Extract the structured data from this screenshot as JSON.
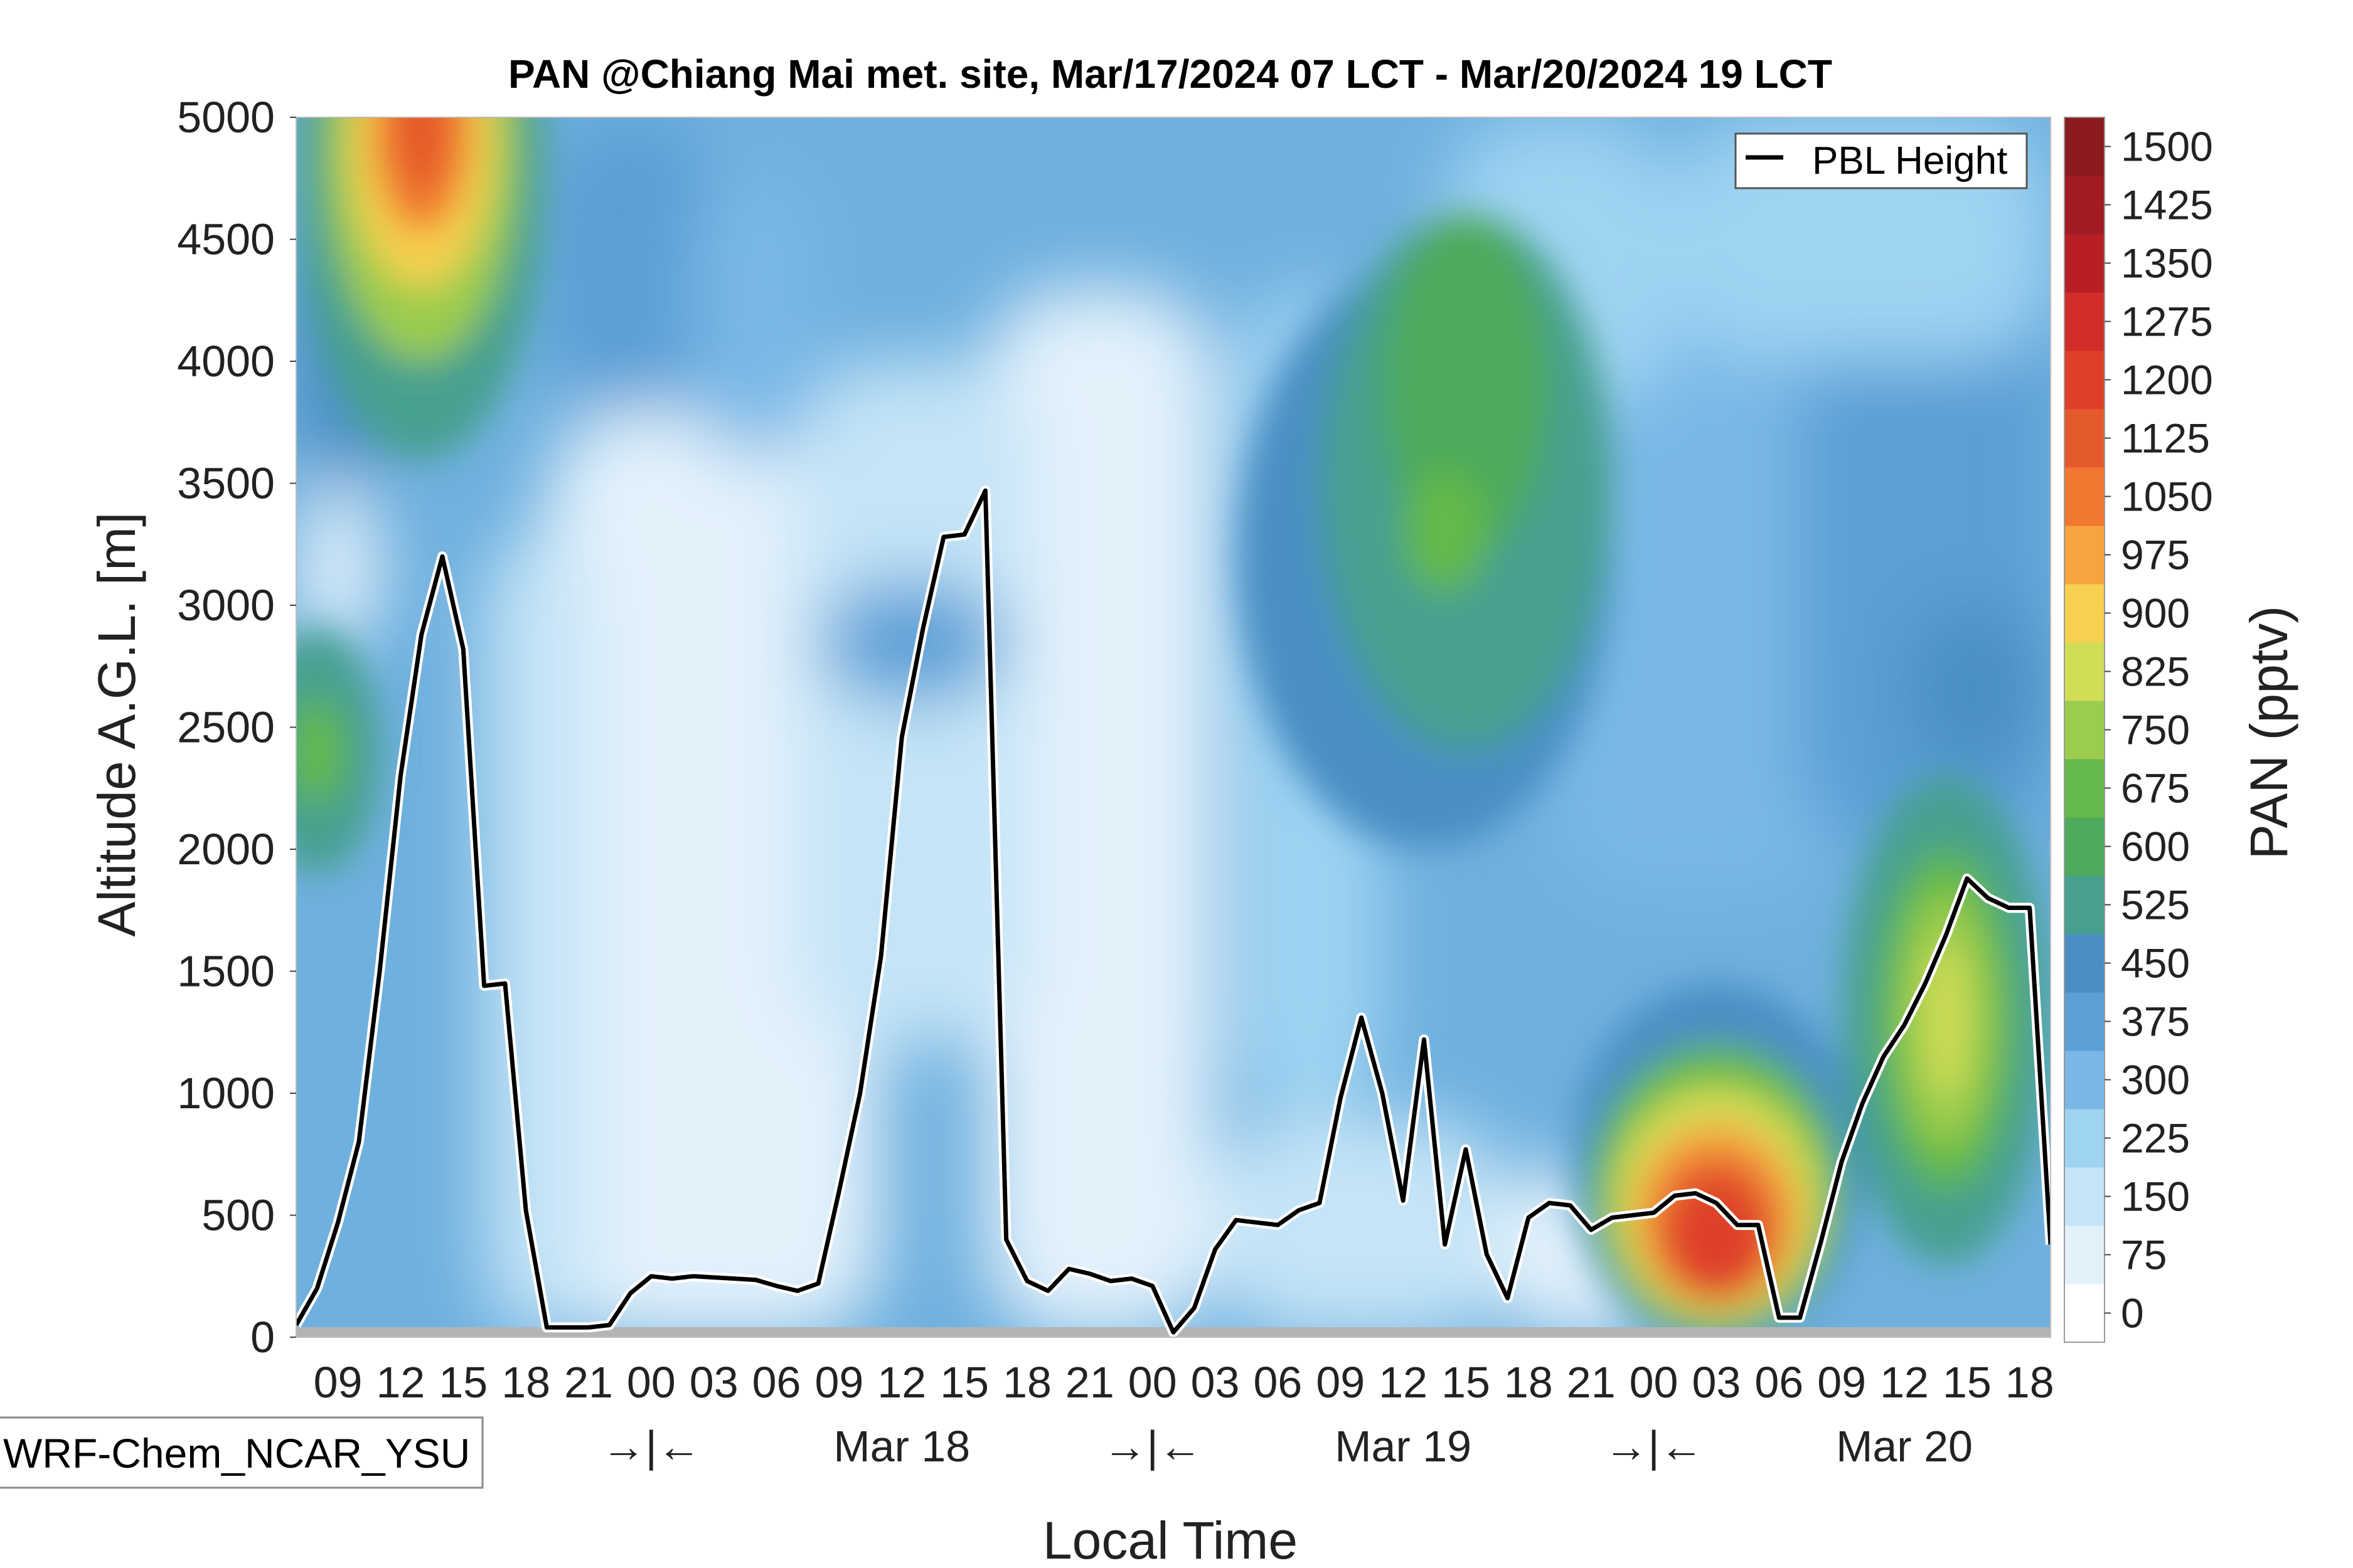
{
  "chart_data": {
    "type": "heatmap",
    "title": "PAN @Chiang Mai met. site, Mar/17/2024 07 LCT - Mar/20/2024 19 LCT",
    "xlabel": "Local Time",
    "ylabel": "Altitude A.G.L. [m]",
    "colorbar_label": "PAN (pptv)",
    "model_label": "WRF-Chem_NCAR_YSU",
    "legend": [
      "PBL Height"
    ],
    "legend_position": "top-right",
    "xlim_hours": [
      0,
      84
    ],
    "ylim": [
      0,
      5000
    ],
    "yticks": [
      0,
      500,
      1000,
      1500,
      2000,
      2500,
      3000,
      3500,
      4000,
      4500,
      5000
    ],
    "x_tick_hours": [
      2,
      5,
      8,
      11,
      14,
      17,
      20,
      23,
      26,
      29,
      32,
      35,
      38,
      41,
      44,
      47,
      50,
      53,
      56,
      59,
      62,
      65,
      68,
      71,
      74,
      77,
      80,
      83
    ],
    "x_tick_labels": [
      "09",
      "12",
      "15",
      "18",
      "21",
      "00",
      "03",
      "06",
      "09",
      "12",
      "15",
      "18",
      "21",
      "00",
      "03",
      "06",
      "09",
      "12",
      "15",
      "18",
      "21",
      "00",
      "03",
      "06",
      "09",
      "12",
      "15",
      "18"
    ],
    "day_markers": [
      {
        "hour": 17,
        "label": "→|←"
      },
      {
        "hour": 29,
        "label": "Mar 18"
      },
      {
        "hour": 41,
        "label": "→|←"
      },
      {
        "hour": 53,
        "label": "Mar 19"
      },
      {
        "hour": 65,
        "label": "→|←"
      },
      {
        "hour": 77,
        "label": "Mar 20"
      }
    ],
    "colorbar_levels": [
      0,
      75,
      150,
      225,
      300,
      375,
      450,
      525,
      600,
      675,
      750,
      825,
      900,
      975,
      1050,
      1125,
      1200,
      1275,
      1350,
      1425,
      1500
    ],
    "colorbar_colors": [
      "#ffffff",
      "#e3f1fb",
      "#c4e4f7",
      "#9fd3f2",
      "#79b8e6",
      "#5a9fd6",
      "#4a8fc4",
      "#47a08f",
      "#4daa5c",
      "#64b94a",
      "#9bcc4e",
      "#d2dd57",
      "#f6d04f",
      "#f6a43f",
      "#f0782f",
      "#e55a2c",
      "#de3f29",
      "#d22d29",
      "#b81f25",
      "#a01b22",
      "#8c1a1c"
    ],
    "pbl_height": {
      "hours": [
        0,
        1,
        2,
        3,
        4,
        5,
        6,
        7,
        8,
        9,
        10,
        11,
        12,
        13,
        14,
        15,
        16,
        17,
        18,
        19,
        20,
        21,
        22,
        23,
        24,
        25,
        26,
        27,
        28,
        29,
        30,
        31,
        32,
        33,
        34,
        35,
        36,
        37,
        38,
        39,
        40,
        41,
        42,
        43,
        44,
        45,
        46,
        47,
        48,
        49,
        50,
        51,
        52,
        53,
        54,
        55,
        56,
        57,
        58,
        59,
        60,
        61,
        62,
        63,
        64,
        65,
        66,
        67,
        68,
        69,
        70,
        71,
        72,
        73,
        74,
        75,
        76,
        77,
        78,
        79,
        80,
        81,
        82,
        83,
        84
      ],
      "values": [
        50,
        200,
        470,
        800,
        1500,
        2300,
        2880,
        3200,
        2820,
        1440,
        1450,
        520,
        40,
        40,
        40,
        50,
        180,
        250,
        240,
        250,
        245,
        240,
        235,
        210,
        190,
        220,
        600,
        1000,
        1560,
        2460,
        2900,
        3280,
        3290,
        3470,
        400,
        230,
        190,
        280,
        260,
        230,
        240,
        210,
        20,
        120,
        360,
        480,
        470,
        460,
        520,
        550,
        980,
        1310,
        1000,
        560,
        1220,
        380,
        770,
        340,
        160,
        490,
        550,
        540,
        440,
        490,
        500,
        510,
        580,
        590,
        550,
        460,
        460,
        80,
        80,
        390,
        720,
        960,
        1150,
        1280,
        1450,
        1650,
        1880,
        1800,
        1760,
        1760,
        380
      ]
    },
    "concentration_features": [
      {
        "label": "upper-level high (Mar 17 afternoon)",
        "hour_center": 6,
        "altitude_center_m": 4800,
        "peak_pptv": 1125
      },
      {
        "label": "elevated layer (Mar 17 morning)",
        "hour_center": 1,
        "altitude_center_m": 2400,
        "peak_pptv": 675
      },
      {
        "label": "plume (Mar 19)",
        "hour_center": 56,
        "altitude_center_m": 3500,
        "peak_pptv": 675
      },
      {
        "label": "surface high (Mar 20 early morning)",
        "hour_center": 68,
        "altitude_center_m": 400,
        "peak_pptv": 1200
      },
      {
        "label": "boundary-layer high (Mar 20 afternoon)",
        "hour_center": 79,
        "altitude_center_m": 1300,
        "peak_pptv": 825
      }
    ]
  }
}
